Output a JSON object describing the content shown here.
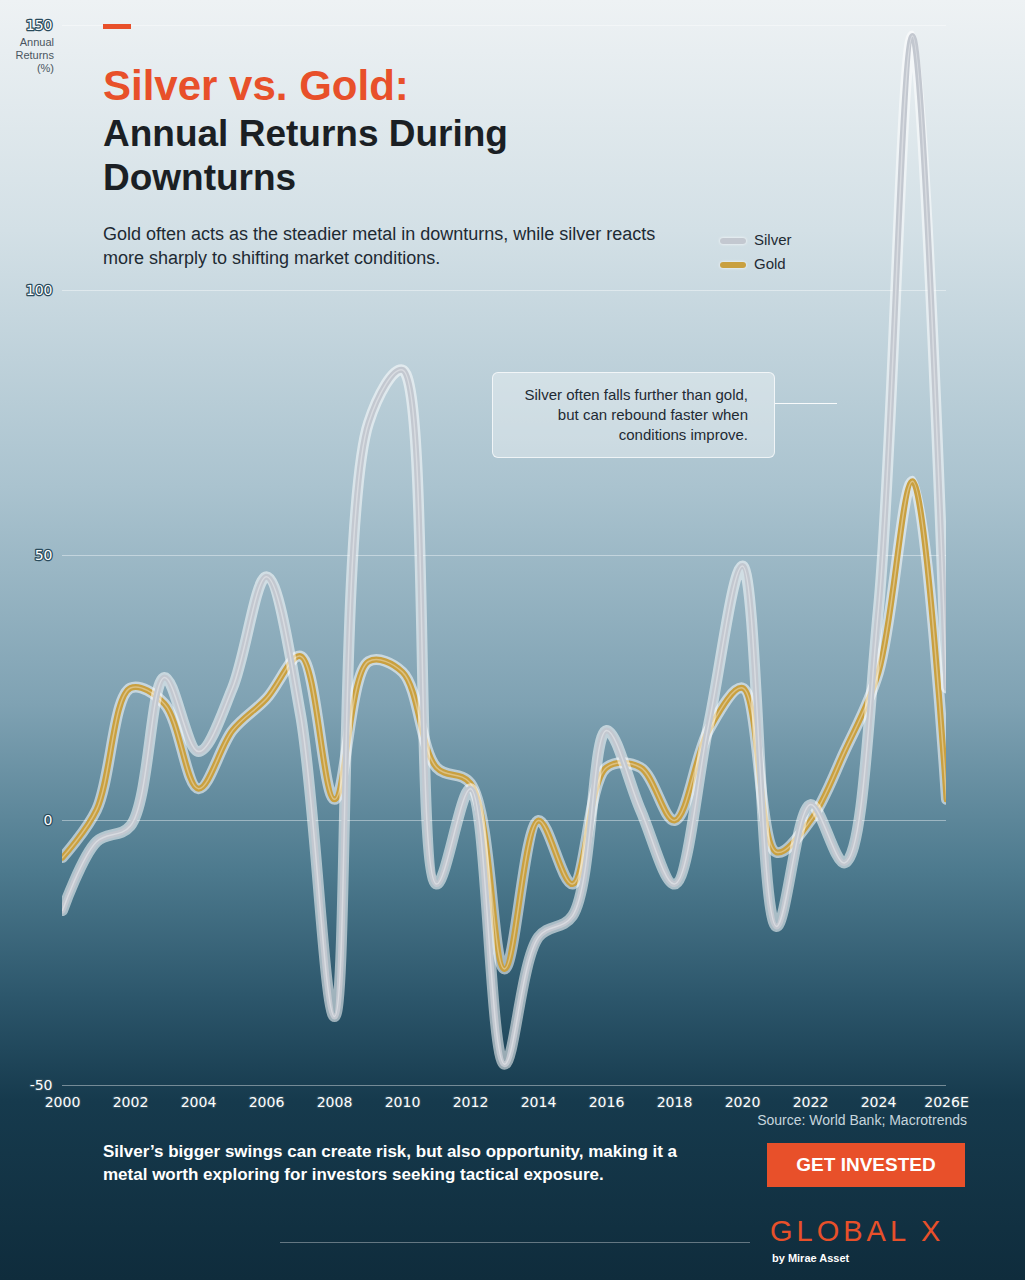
{
  "chart_data": {
    "type": "line",
    "title": [
      "Silver vs. Gold:",
      "Annual Returns During Downturns"
    ],
    "subtitle": "Gold often acts as the steadier metal in downturns, while silver reacts more sharply to shifting market conditions.",
    "ylabel": "Annual Returns (%)",
    "annotations": [
      "Silver often falls further than gold, but can rebound faster when conditions improve."
    ],
    "caption": "Silver’s bigger swings can create risk, but also opportunity, making it a metal worth exploring for investors seeking tactical exposure.",
    "source": "Source: World Bank; Macrotrends",
    "button": "GET INVESTED",
    "brand": "GLOBAL X",
    "brand_sub": "by Mirae Asset",
    "x": [
      2000,
      2001,
      2002,
      2003,
      2004,
      2005,
      2006,
      2007,
      2008,
      2009,
      2010,
      2011,
      2012,
      2013,
      2014,
      2015,
      2016,
      2017,
      2018,
      2019,
      2020,
      2021,
      2022,
      2023,
      2024,
      2025,
      2026
    ],
    "series": [
      {
        "name": "Gold",
        "color": "#c9a040",
        "values": [
          -7,
          2,
          25,
          22,
          6,
          17,
          23,
          31,
          4,
          30,
          28,
          10,
          7,
          -28,
          0,
          -12,
          10,
          10,
          0,
          17,
          25,
          -6,
          0,
          13,
          28,
          64,
          4
        ]
      },
      {
        "name": "Silver",
        "color": "#c3c8d0",
        "values": [
          -17,
          -4,
          -1,
          27,
          13,
          25,
          46,
          20,
          -37,
          75,
          85,
          -12,
          6,
          -46,
          -22,
          -18,
          17,
          2,
          -12,
          18,
          48,
          -20,
          3,
          -8,
          40,
          148,
          25
        ]
      }
    ],
    "xlim": [
      2000,
      2026
    ],
    "ylim": [
      -50,
      150
    ],
    "xticks": [
      2000,
      2002,
      2004,
      2006,
      2008,
      2010,
      2012,
      2014,
      2016,
      2018,
      2020,
      2022,
      2024,
      {
        "value": 2026,
        "label": "2026E"
      }
    ],
    "yticks": [
      -50,
      0,
      50,
      100,
      150
    ],
    "grid": true,
    "legend": "top-right"
  }
}
